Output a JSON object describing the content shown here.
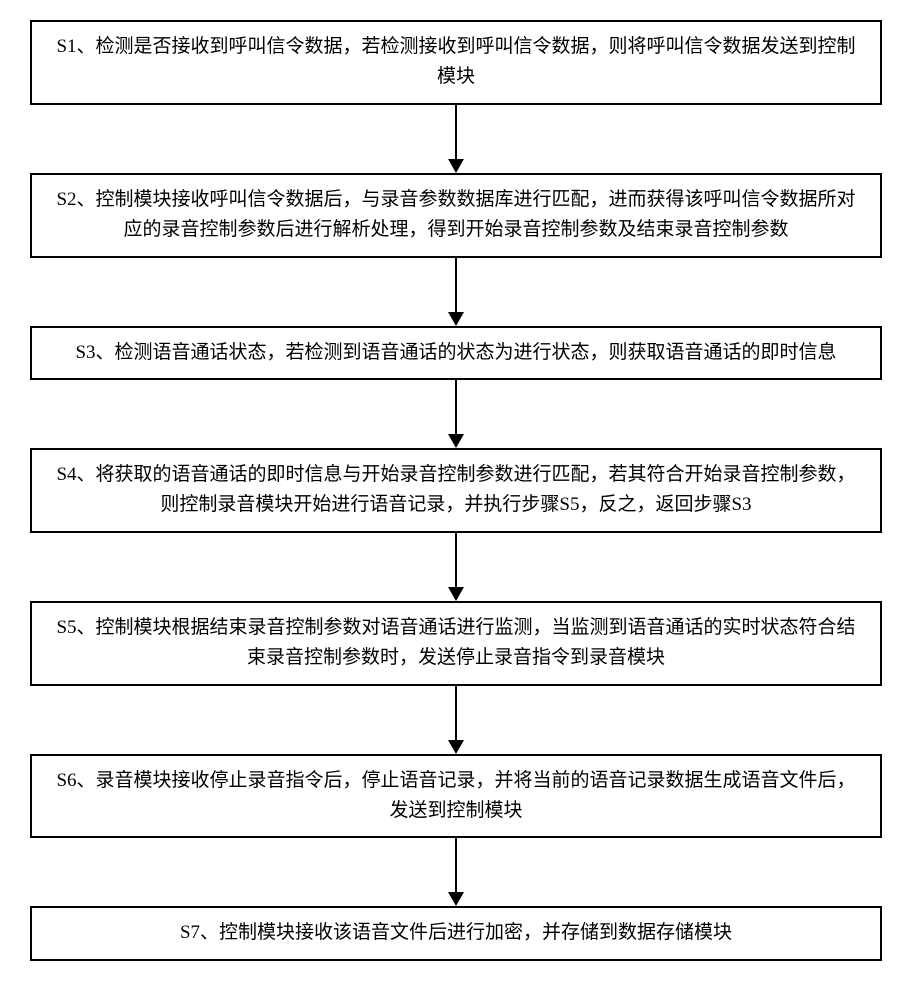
{
  "flowchart": {
    "type": "flowchart",
    "direction": "vertical",
    "box_border_color": "#000000",
    "box_border_width": 2,
    "box_background_color": "#ffffff",
    "text_color": "#000000",
    "font_size": 19,
    "line_height": 1.6,
    "arrow_color": "#000000",
    "arrow_line_width": 2,
    "arrow_head_width": 16,
    "arrow_head_height": 14,
    "arrow_gap_height": 68,
    "steps": [
      {
        "id": "S1",
        "text": "S1、检测是否接收到呼叫信令数据，若检测接收到呼叫信令数据，则将呼叫信令数据发送到控制模块"
      },
      {
        "id": "S2",
        "text": "S2、控制模块接收呼叫信令数据后，与录音参数数据库进行匹配，进而获得该呼叫信令数据所对应的录音控制参数后进行解析处理，得到开始录音控制参数及结束录音控制参数"
      },
      {
        "id": "S3",
        "text": "S3、检测语音通话状态，若检测到语音通话的状态为进行状态，则获取语音通话的即时信息"
      },
      {
        "id": "S4",
        "text": "S4、将获取的语音通话的即时信息与开始录音控制参数进行匹配，若其符合开始录音控制参数，则控制录音模块开始进行语音记录，并执行步骤S5，反之，返回步骤S3"
      },
      {
        "id": "S5",
        "text": "S5、控制模块根据结束录音控制参数对语音通话进行监测，当监测到语音通话的实时状态符合结束录音控制参数时，发送停止录音指令到录音模块"
      },
      {
        "id": "S6",
        "text": "S6、录音模块接收停止录音指令后，停止语音记录，并将当前的语音记录数据生成语音文件后，发送到控制模块"
      },
      {
        "id": "S7",
        "text": "S7、控制模块接收该语音文件后进行加密，并存储到数据存储模块"
      }
    ]
  }
}
